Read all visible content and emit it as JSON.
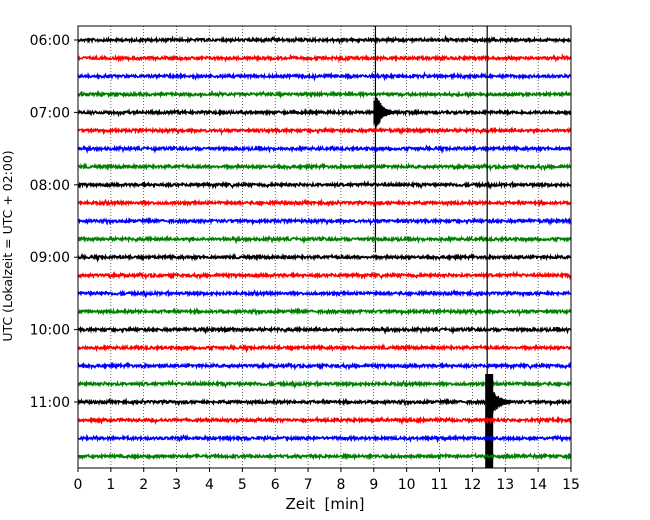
{
  "chart_data": {
    "type": "line",
    "title": "",
    "xlabel": "Zeit  [min]",
    "ylabel": "UTC (Lokalzeit = UTC + 02:00)",
    "xlim": [
      0,
      15
    ],
    "x_ticks": [
      "0",
      "1",
      "2",
      "3",
      "4",
      "5",
      "6",
      "7",
      "8",
      "9",
      "10",
      "11",
      "12",
      "13",
      "14",
      "15"
    ],
    "y_ticks": [
      "06:00",
      "07:00",
      "08:00",
      "09:00",
      "10:00",
      "11:00"
    ],
    "grid": "vertical dotted",
    "trace_colors": [
      "#000000",
      "#ff0000",
      "#0000ff",
      "#008000"
    ],
    "traces": [
      {
        "start": "06:00",
        "color": "#000000"
      },
      {
        "start": "06:15",
        "color": "#ff0000"
      },
      {
        "start": "06:30",
        "color": "#0000ff"
      },
      {
        "start": "06:45",
        "color": "#008000"
      },
      {
        "start": "07:00",
        "color": "#000000"
      },
      {
        "start": "07:15",
        "color": "#ff0000"
      },
      {
        "start": "07:30",
        "color": "#0000ff"
      },
      {
        "start": "07:45",
        "color": "#008000"
      },
      {
        "start": "08:00",
        "color": "#000000"
      },
      {
        "start": "08:15",
        "color": "#ff0000"
      },
      {
        "start": "08:30",
        "color": "#0000ff"
      },
      {
        "start": "08:45",
        "color": "#008000"
      },
      {
        "start": "09:00",
        "color": "#000000"
      },
      {
        "start": "09:15",
        "color": "#ff0000"
      },
      {
        "start": "09:30",
        "color": "#0000ff"
      },
      {
        "start": "09:45",
        "color": "#008000"
      },
      {
        "start": "10:00",
        "color": "#000000"
      },
      {
        "start": "10:15",
        "color": "#ff0000"
      },
      {
        "start": "10:30",
        "color": "#0000ff"
      },
      {
        "start": "10:45",
        "color": "#008000"
      },
      {
        "start": "11:00",
        "color": "#000000"
      },
      {
        "start": "11:15",
        "color": "#ff0000"
      },
      {
        "start": "11:30",
        "color": "#0000ff"
      },
      {
        "start": "11:45",
        "color": "#008000"
      }
    ],
    "events": [
      {
        "trace_start": "07:00",
        "minute": 9.05
      },
      {
        "trace_start": "11:00",
        "minute": 12.45
      }
    ]
  }
}
